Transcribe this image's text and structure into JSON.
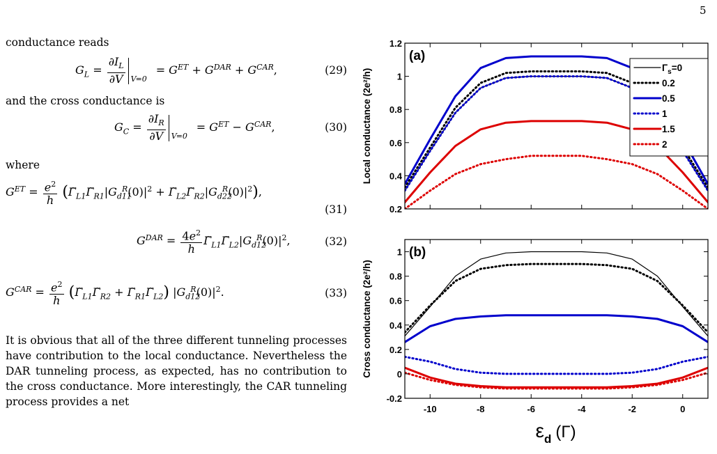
{
  "page_number": "5",
  "text": {
    "intro_local": "conductance reads",
    "intro_cross": "and the cross conductance is",
    "where": "where",
    "paragraph": "It is obvious that all of the three different tunneling processes have contribution to the local conductance. Nevertheless the DAR tunneling process, as expected, has no contribution to the cross conductance. More interestingly, the CAR tunneling process provides a net"
  },
  "equations": {
    "eq29_number": "(29)",
    "eq30_number": "(30)",
    "eq31_number": "(31)",
    "eq32_number": "(32)",
    "eq33_number": "(33)"
  },
  "chart_data": [
    {
      "type": "line",
      "panel_label": "(a)",
      "ylabel": "Local conductance (2e²/h)",
      "xlim": [
        -11,
        1
      ],
      "ylim": [
        0.2,
        1.2
      ],
      "yticks": [
        "0.2",
        "0.4",
        "0.6",
        "0.8",
        "1",
        "1.2"
      ],
      "legend_title_prefix": "Γ",
      "legend_title_sub": "s",
      "legend_placement": "top-right",
      "series": [
        {
          "name": "=0",
          "color": "#000000",
          "style": "solid-thin",
          "x": [
            -11,
            -10,
            -9,
            -8,
            -7,
            -6,
            -5,
            -4,
            -3,
            -2,
            -1,
            0,
            1
          ],
          "y": [
            0.31,
            0.55,
            0.78,
            0.93,
            0.99,
            1.0,
            1.0,
            1.0,
            0.99,
            0.93,
            0.78,
            0.55,
            0.31
          ]
        },
        {
          "name": "0.2",
          "color": "#000000",
          "style": "dotted",
          "x": [
            -11,
            -10,
            -9,
            -8,
            -7,
            -6,
            -5,
            -4,
            -3,
            -2,
            -1,
            0,
            1
          ],
          "y": [
            0.33,
            0.57,
            0.81,
            0.96,
            1.02,
            1.03,
            1.03,
            1.03,
            1.02,
            0.96,
            0.81,
            0.57,
            0.33
          ]
        },
        {
          "name": "0.5",
          "color": "#0000cc",
          "style": "solid-thick",
          "x": [
            -11,
            -10,
            -9,
            -8,
            -7,
            -6,
            -5,
            -4,
            -3,
            -2,
            -1,
            0,
            1
          ],
          "y": [
            0.35,
            0.62,
            0.88,
            1.05,
            1.11,
            1.12,
            1.12,
            1.12,
            1.11,
            1.05,
            0.88,
            0.62,
            0.35
          ]
        },
        {
          "name": "1",
          "color": "#0000cc",
          "style": "dotted",
          "x": [
            -11,
            -10,
            -9,
            -8,
            -7,
            -6,
            -5,
            -4,
            -3,
            -2,
            -1,
            0,
            1
          ],
          "y": [
            0.31,
            0.55,
            0.78,
            0.93,
            0.99,
            1.0,
            1.0,
            1.0,
            0.99,
            0.93,
            0.78,
            0.55,
            0.31
          ]
        },
        {
          "name": "1.5",
          "color": "#dd0000",
          "style": "solid-thick",
          "x": [
            -11,
            -10,
            -9,
            -8,
            -7,
            -6,
            -5,
            -4,
            -3,
            -2,
            -1,
            0,
            1
          ],
          "y": [
            0.24,
            0.42,
            0.58,
            0.68,
            0.72,
            0.73,
            0.73,
            0.73,
            0.72,
            0.68,
            0.58,
            0.42,
            0.24
          ]
        },
        {
          "name": "2",
          "color": "#dd0000",
          "style": "dotted",
          "x": [
            -11,
            -10,
            -9,
            -8,
            -7,
            -6,
            -5,
            -4,
            -3,
            -2,
            -1,
            0,
            1
          ],
          "y": [
            0.2,
            0.31,
            0.41,
            0.47,
            0.5,
            0.52,
            0.52,
            0.52,
            0.5,
            0.47,
            0.41,
            0.31,
            0.2
          ]
        }
      ]
    },
    {
      "type": "line",
      "panel_label": "(b)",
      "ylabel": "Cross conductance (2e²/h)",
      "xlabel_main": "ε",
      "xlabel_sub": "d",
      "xlabel_unit": "(Γ)",
      "xlim": [
        -11,
        1
      ],
      "ylim": [
        -0.2,
        1.1
      ],
      "xticks": [
        "-10",
        "-8",
        "-6",
        "-4",
        "-2",
        "0"
      ],
      "yticks": [
        "-0.2",
        "0",
        "0.2",
        "0.4",
        "0.6",
        "0.8",
        "1"
      ],
      "series": [
        {
          "name": "=0",
          "color": "#000000",
          "style": "solid-thin",
          "x": [
            -11,
            -10,
            -9,
            -8,
            -7,
            -6,
            -5,
            -4,
            -3,
            -2,
            -1,
            0,
            1
          ],
          "y": [
            0.31,
            0.55,
            0.8,
            0.94,
            0.99,
            1.0,
            1.0,
            1.0,
            0.99,
            0.94,
            0.8,
            0.55,
            0.31
          ]
        },
        {
          "name": "0.2",
          "color": "#000000",
          "style": "dotted",
          "x": [
            -11,
            -10,
            -9,
            -8,
            -7,
            -6,
            -5,
            -4,
            -3,
            -2,
            -1,
            0,
            1
          ],
          "y": [
            0.34,
            0.56,
            0.76,
            0.86,
            0.89,
            0.9,
            0.9,
            0.9,
            0.89,
            0.86,
            0.76,
            0.56,
            0.34
          ]
        },
        {
          "name": "0.5",
          "color": "#0000cc",
          "style": "solid-thick",
          "x": [
            -11,
            -10,
            -9,
            -8,
            -7,
            -6,
            -5,
            -4,
            -3,
            -2,
            -1,
            0,
            1
          ],
          "y": [
            0.26,
            0.39,
            0.45,
            0.47,
            0.48,
            0.48,
            0.48,
            0.48,
            0.48,
            0.47,
            0.45,
            0.39,
            0.26
          ]
        },
        {
          "name": "1",
          "color": "#0000cc",
          "style": "dotted",
          "x": [
            -11,
            -10,
            -9,
            -8,
            -7,
            -6,
            -5,
            -4,
            -3,
            -2,
            -1,
            0,
            1
          ],
          "y": [
            0.14,
            0.1,
            0.04,
            0.01,
            0.0,
            0.0,
            0.0,
            0.0,
            0.0,
            0.01,
            0.04,
            0.1,
            0.14
          ]
        },
        {
          "name": "1.5",
          "color": "#dd0000",
          "style": "solid-thick",
          "x": [
            -11,
            -10,
            -9,
            -8,
            -7,
            -6,
            -5,
            -4,
            -3,
            -2,
            -1,
            0,
            1
          ],
          "y": [
            0.05,
            -0.03,
            -0.08,
            -0.1,
            -0.11,
            -0.11,
            -0.11,
            -0.11,
            -0.11,
            -0.1,
            -0.08,
            -0.03,
            0.05
          ]
        },
        {
          "name": "2",
          "color": "#dd0000",
          "style": "dotted",
          "x": [
            -11,
            -10,
            -9,
            -8,
            -7,
            -6,
            -5,
            -4,
            -3,
            -2,
            -1,
            0,
            1
          ],
          "y": [
            0.01,
            -0.05,
            -0.09,
            -0.11,
            -0.12,
            -0.12,
            -0.12,
            -0.12,
            -0.12,
            -0.11,
            -0.09,
            -0.05,
            0.01
          ]
        }
      ]
    }
  ]
}
